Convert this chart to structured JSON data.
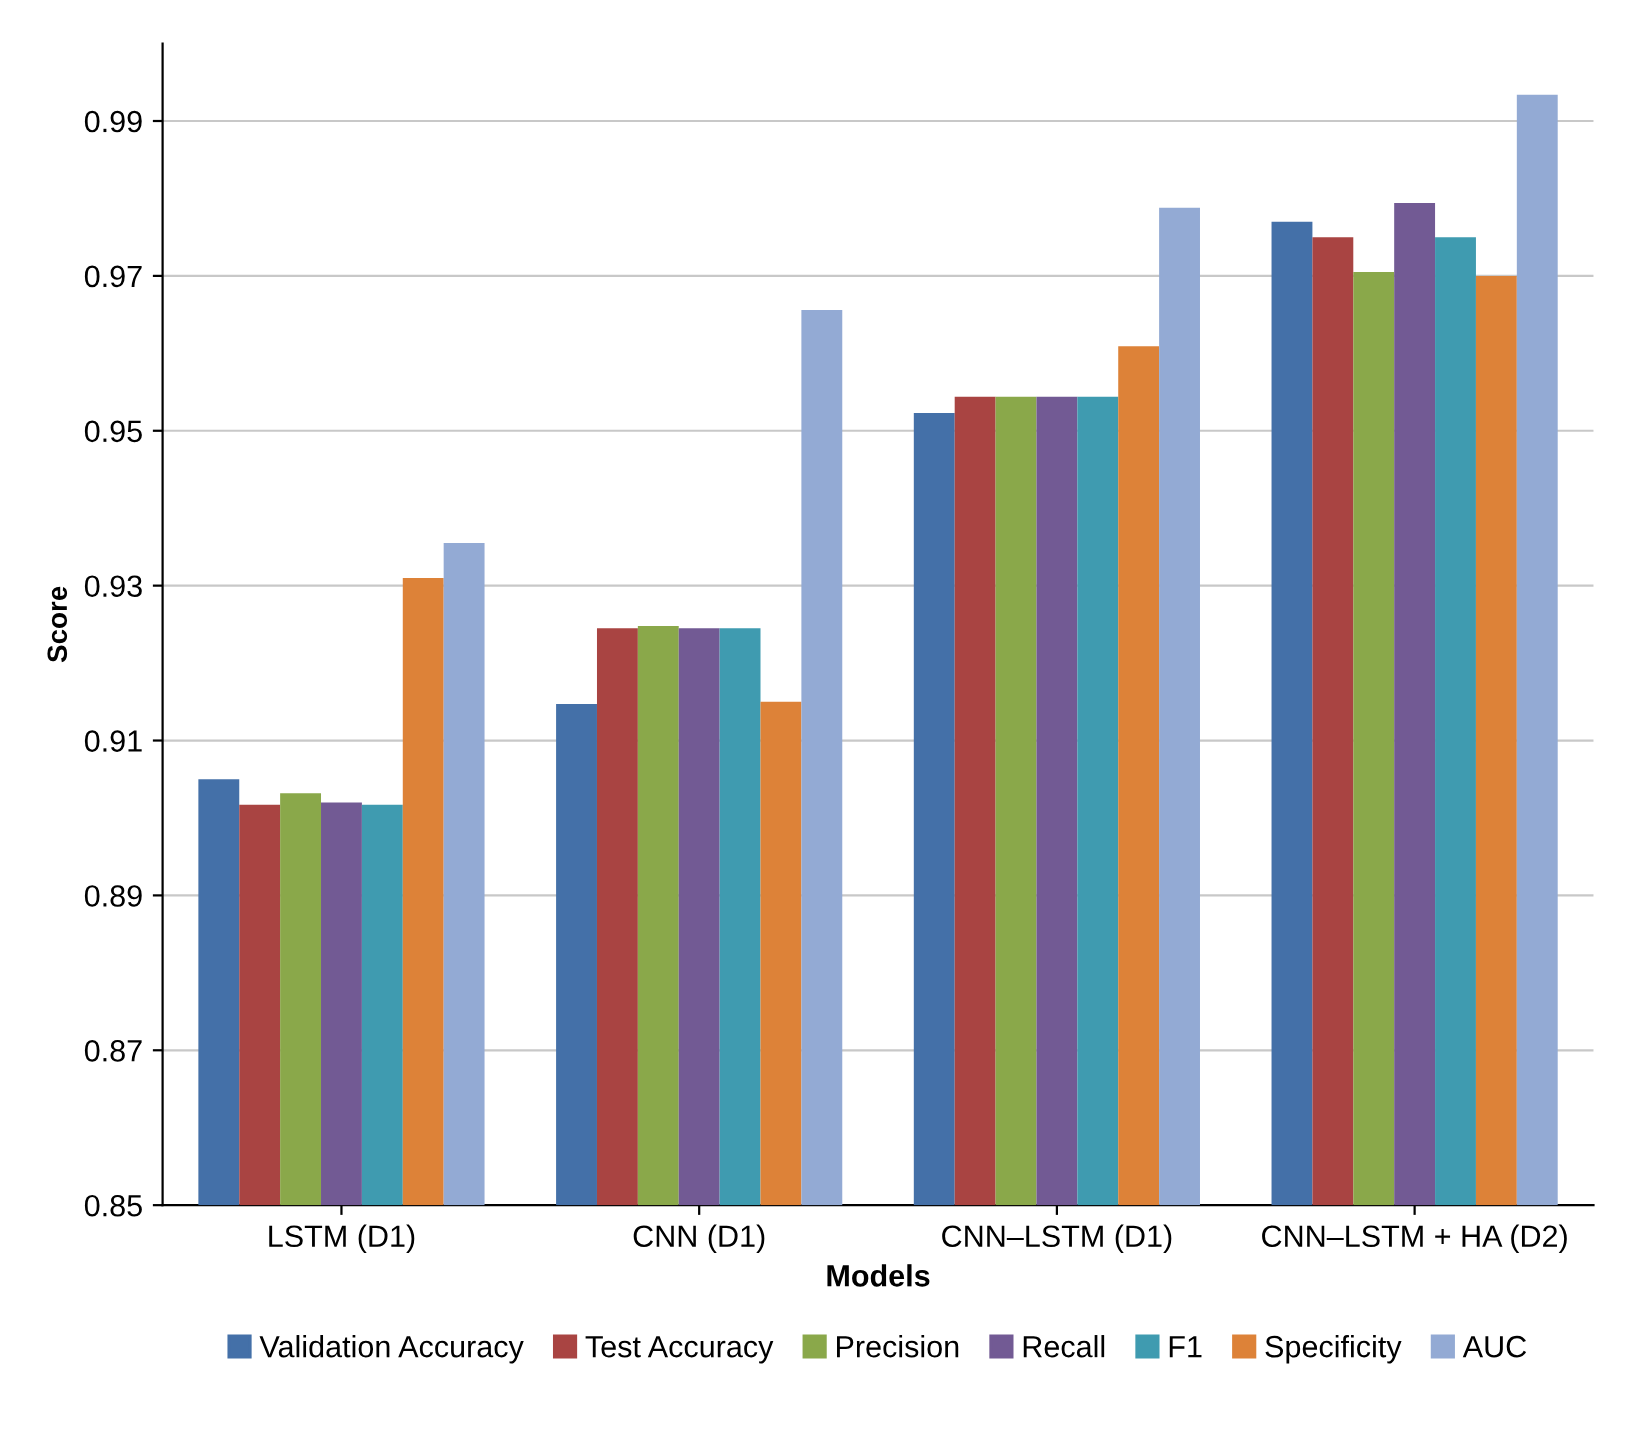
{
  "chart_data": {
    "type": "bar",
    "xlabel": "Models",
    "ylabel": "Score",
    "categories": [
      "LSTM (D1)",
      "CNN (D1)",
      "CNN–LSTM (D1)",
      "CNN–LSTM + HA (D2)"
    ],
    "series": [
      {
        "name": "Validation Accuracy",
        "color": "#4470a8",
        "values": [
          0.905,
          0.9147,
          0.9523,
          0.977
        ]
      },
      {
        "name": "Test Accuracy",
        "color": "#a94442",
        "values": [
          0.9017,
          0.9245,
          0.9544,
          0.975
        ]
      },
      {
        "name": "Precision",
        "color": "#8aa84a",
        "values": [
          0.9032,
          0.9248,
          0.9544,
          0.9705
        ]
      },
      {
        "name": "Recall",
        "color": "#725a94",
        "values": [
          0.902,
          0.9245,
          0.9544,
          0.9794
        ]
      },
      {
        "name": "F1",
        "color": "#3f9bb0",
        "values": [
          0.9017,
          0.9245,
          0.9544,
          0.975
        ]
      },
      {
        "name": "Specificity",
        "color": "#dd8238",
        "values": [
          0.931,
          0.915,
          0.9609,
          0.97
        ]
      },
      {
        "name": "AUC",
        "color": "#93aad4",
        "values": [
          0.9355,
          0.9656,
          0.9788,
          0.9934
        ]
      }
    ],
    "ylim": [
      0.85,
      1.0
    ],
    "yticks": [
      0.85,
      0.87,
      0.89,
      0.91,
      0.93,
      0.95,
      0.97,
      0.99
    ],
    "grid": "y",
    "legend": "bottom"
  }
}
